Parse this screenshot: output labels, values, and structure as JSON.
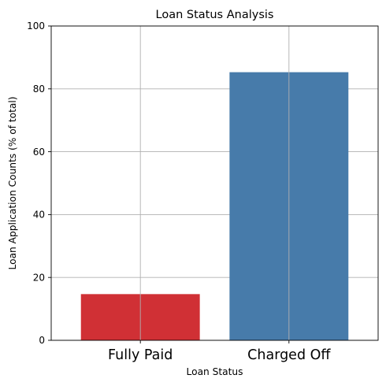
{
  "chart_data": {
    "type": "bar",
    "title": "Loan Status Analysis",
    "xlabel": "Loan Status",
    "ylabel": "Loan Application Counts (% of total)",
    "categories": [
      "Fully Paid",
      "Charged Off"
    ],
    "values": [
      14.7,
      85.3
    ],
    "colors": [
      "#d03035",
      "#477baa"
    ],
    "ylim": [
      0,
      100
    ],
    "yticks": [
      0,
      20,
      40,
      60,
      80,
      100
    ],
    "ytick_labels": [
      "0",
      "20",
      "40",
      "60",
      "80",
      "100"
    ],
    "grid": true,
    "legend": "none"
  }
}
